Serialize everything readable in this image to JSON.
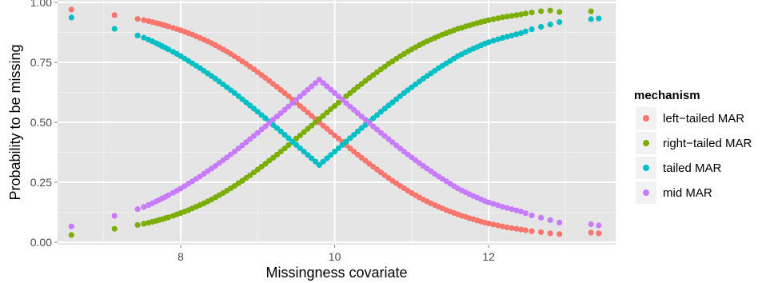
{
  "chart_data": {
    "type": "scatter",
    "title": "",
    "xlabel": "Missingness covariate",
    "ylabel": "Probability to be missing",
    "xlim": [
      6.4,
      13.65
    ],
    "ylim": [
      -0.01,
      1.01
    ],
    "x_ticks": [
      8,
      10,
      12
    ],
    "x_tick_labels": [
      "8",
      "10",
      "12"
    ],
    "y_ticks": [
      0,
      0.25,
      0.5,
      0.75,
      1
    ],
    "y_tick_labels": [
      "0.00",
      "0.25",
      "0.50",
      "0.75",
      "1.00"
    ],
    "grid": true,
    "background": "#e5e5e5",
    "legend": {
      "title": "mechanism",
      "position": "right",
      "entries": [
        "left−tailed MAR",
        "right−tailed MAR",
        "tailed MAR",
        "mid MAR"
      ]
    },
    "colors": {
      "left-tailed MAR": "#f8766d",
      "right-tailed MAR": "#7cae00",
      "tailed MAR": "#00bfc4",
      "mid MAR": "#c77cff"
    },
    "x": [
      6.58,
      7.14,
      7.44,
      7.52,
      7.58,
      7.63,
      7.68,
      7.72,
      7.76,
      7.8,
      7.84,
      7.9,
      7.95,
      8.0,
      8.05,
      8.1,
      8.15,
      8.2,
      8.25,
      8.3,
      8.35,
      8.4,
      8.45,
      8.5,
      8.55,
      8.6,
      8.65,
      8.7,
      8.75,
      8.8,
      8.85,
      8.9,
      8.95,
      9.0,
      9.05,
      9.1,
      9.15,
      9.2,
      9.25,
      9.3,
      9.35,
      9.4,
      9.45,
      9.5,
      9.55,
      9.6,
      9.65,
      9.7,
      9.75,
      9.8,
      9.85,
      9.9,
      9.95,
      10.0,
      10.05,
      10.1,
      10.15,
      10.2,
      10.25,
      10.3,
      10.35,
      10.4,
      10.45,
      10.5,
      10.55,
      10.6,
      10.65,
      10.7,
      10.75,
      10.8,
      10.85,
      10.9,
      10.95,
      11.0,
      11.05,
      11.1,
      11.15,
      11.2,
      11.25,
      11.3,
      11.35,
      11.4,
      11.45,
      11.5,
      11.55,
      11.6,
      11.65,
      11.7,
      11.75,
      11.8,
      11.85,
      11.9,
      11.95,
      12.0,
      12.06,
      12.12,
      12.18,
      12.24,
      12.3,
      12.36,
      12.42,
      12.48,
      12.56,
      12.68,
      12.8,
      12.92,
      13.33,
      13.43
    ],
    "series": [
      {
        "name": "left−tailed MAR",
        "values": [
          0.97,
          0.947,
          0.931,
          0.926,
          0.922,
          0.918,
          0.914,
          0.911,
          0.907,
          0.904,
          0.9,
          0.894,
          0.889,
          0.884,
          0.878,
          0.872,
          0.866,
          0.859,
          0.852,
          0.845,
          0.838,
          0.83,
          0.822,
          0.813,
          0.804,
          0.795,
          0.785,
          0.775,
          0.765,
          0.754,
          0.744,
          0.732,
          0.721,
          0.709,
          0.697,
          0.685,
          0.673,
          0.66,
          0.648,
          0.635,
          0.622,
          0.609,
          0.595,
          0.582,
          0.568,
          0.555,
          0.541,
          0.527,
          0.514,
          0.5,
          0.486,
          0.473,
          0.459,
          0.445,
          0.432,
          0.418,
          0.405,
          0.391,
          0.378,
          0.365,
          0.352,
          0.34,
          0.327,
          0.315,
          0.303,
          0.291,
          0.279,
          0.268,
          0.256,
          0.246,
          0.235,
          0.225,
          0.215,
          0.205,
          0.196,
          0.187,
          0.178,
          0.17,
          0.162,
          0.155,
          0.148,
          0.141,
          0.134,
          0.128,
          0.122,
          0.116,
          0.11,
          0.106,
          0.1,
          0.096,
          0.091,
          0.086,
          0.082,
          0.078,
          0.074,
          0.07,
          0.066,
          0.062,
          0.059,
          0.056,
          0.053,
          0.05,
          0.046,
          0.042,
          0.037,
          0.034,
          0.04,
          0.037
        ]
      },
      {
        "name": "right−tailed MAR",
        "values": [
          0.03,
          0.056,
          0.072,
          0.077,
          0.081,
          0.085,
          0.089,
          0.093,
          0.096,
          0.1,
          0.104,
          0.11,
          0.116,
          0.122,
          0.128,
          0.134,
          0.141,
          0.148,
          0.155,
          0.162,
          0.17,
          0.178,
          0.187,
          0.196,
          0.205,
          0.215,
          0.225,
          0.235,
          0.246,
          0.256,
          0.268,
          0.279,
          0.291,
          0.303,
          0.315,
          0.327,
          0.34,
          0.352,
          0.365,
          0.378,
          0.391,
          0.405,
          0.418,
          0.432,
          0.445,
          0.459,
          0.473,
          0.486,
          0.5,
          0.514,
          0.527,
          0.541,
          0.555,
          0.568,
          0.582,
          0.595,
          0.609,
          0.622,
          0.635,
          0.648,
          0.66,
          0.673,
          0.685,
          0.697,
          0.709,
          0.721,
          0.732,
          0.744,
          0.754,
          0.765,
          0.775,
          0.785,
          0.795,
          0.804,
          0.813,
          0.822,
          0.83,
          0.838,
          0.845,
          0.852,
          0.859,
          0.866,
          0.872,
          0.878,
          0.884,
          0.89,
          0.894,
          0.9,
          0.904,
          0.909,
          0.914,
          0.918,
          0.922,
          0.926,
          0.93,
          0.934,
          0.938,
          0.941,
          0.944,
          0.947,
          0.95,
          0.954,
          0.958,
          0.963,
          0.966,
          0.96,
          0.963
        ]
      },
      {
        "name": "tailed MAR",
        "values": [
          0.937,
          0.89,
          0.862,
          0.853,
          0.845,
          0.838,
          0.83,
          0.824,
          0.817,
          0.811,
          0.804,
          0.794,
          0.785,
          0.776,
          0.766,
          0.756,
          0.746,
          0.736,
          0.726,
          0.715,
          0.704,
          0.693,
          0.682,
          0.67,
          0.658,
          0.646,
          0.634,
          0.622,
          0.609,
          0.596,
          0.583,
          0.57,
          0.557,
          0.544,
          0.53,
          0.517,
          0.503,
          0.489,
          0.476,
          0.462,
          0.448,
          0.434,
          0.42,
          0.406,
          0.392,
          0.378,
          0.364,
          0.35,
          0.336,
          0.322,
          0.336,
          0.35,
          0.364,
          0.378,
          0.392,
          0.406,
          0.42,
          0.434,
          0.448,
          0.462,
          0.476,
          0.489,
          0.503,
          0.517,
          0.53,
          0.544,
          0.557,
          0.57,
          0.583,
          0.596,
          0.609,
          0.622,
          0.634,
          0.646,
          0.658,
          0.67,
          0.682,
          0.693,
          0.704,
          0.715,
          0.726,
          0.736,
          0.746,
          0.756,
          0.766,
          0.776,
          0.784,
          0.792,
          0.8,
          0.807,
          0.814,
          0.821,
          0.828,
          0.834,
          0.84,
          0.846,
          0.852,
          0.857,
          0.862,
          0.867,
          0.872,
          0.879,
          0.888,
          0.898,
          0.908,
          0.918,
          0.93,
          0.933
        ]
      },
      {
        "name": "mid MAR",
        "values": [
          0.066,
          0.11,
          0.138,
          0.147,
          0.155,
          0.162,
          0.17,
          0.176,
          0.183,
          0.189,
          0.196,
          0.206,
          0.215,
          0.224,
          0.234,
          0.244,
          0.254,
          0.264,
          0.274,
          0.285,
          0.296,
          0.307,
          0.318,
          0.33,
          0.342,
          0.354,
          0.366,
          0.378,
          0.391,
          0.404,
          0.417,
          0.43,
          0.443,
          0.456,
          0.47,
          0.483,
          0.497,
          0.511,
          0.524,
          0.538,
          0.552,
          0.566,
          0.58,
          0.594,
          0.608,
          0.622,
          0.636,
          0.65,
          0.664,
          0.678,
          0.664,
          0.65,
          0.636,
          0.622,
          0.608,
          0.594,
          0.58,
          0.566,
          0.552,
          0.538,
          0.524,
          0.511,
          0.497,
          0.483,
          0.47,
          0.456,
          0.443,
          0.43,
          0.417,
          0.404,
          0.391,
          0.378,
          0.366,
          0.354,
          0.342,
          0.33,
          0.318,
          0.307,
          0.296,
          0.285,
          0.274,
          0.264,
          0.254,
          0.244,
          0.234,
          0.224,
          0.216,
          0.208,
          0.2,
          0.193,
          0.186,
          0.179,
          0.172,
          0.166,
          0.16,
          0.154,
          0.148,
          0.143,
          0.138,
          0.133,
          0.128,
          0.121,
          0.112,
          0.102,
          0.092,
          0.082,
          0.075,
          0.07
        ]
      }
    ]
  }
}
